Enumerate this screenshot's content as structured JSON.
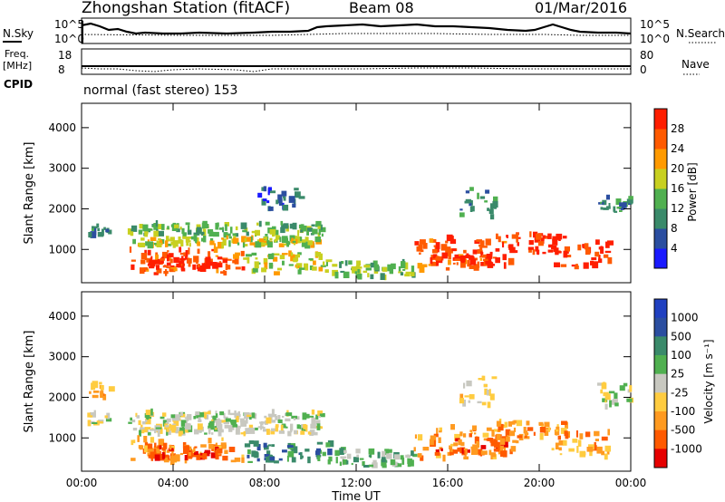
{
  "header": {
    "station": "Zhongshan Station (fitACF)",
    "beam": "Beam 08",
    "date": "01/Mar/2016",
    "cpid_label": "CPID",
    "mode": "normal (fast stereo) 153"
  },
  "strip_noise": {
    "left_label": "N.Sky",
    "right_label": "N.Search",
    "left_ticks": [
      "10^5",
      "10^0"
    ],
    "right_ticks": [
      "10^5",
      "10^0"
    ]
  },
  "strip_freq": {
    "left_label_1": "Freq.",
    "left_label_2": "[MHz]",
    "right_label": "Nave",
    "left_ticks": [
      "18",
      "8"
    ],
    "right_ticks": [
      "80",
      "0"
    ]
  },
  "colors": {
    "power": [
      "#1a1aff",
      "#2b4ea0",
      "#3a8a6a",
      "#50b050",
      "#c8d020",
      "#ff9a00",
      "#ff5a00",
      "#ff1e00"
    ],
    "velocity": [
      "#e60000",
      "#ff5a00",
      "#ff9a20",
      "#ffcc40",
      "#c8c8c0",
      "#50b050",
      "#3a8a6a",
      "#2b4ea0",
      "#2040c0"
    ]
  },
  "chart_data": [
    {
      "type": "heatmap",
      "name": "power-panel",
      "ylabel": "Slant Range [km]",
      "colorbar_label": "Power [dB]",
      "colorbar_ticks": [
        "4",
        "8",
        "12",
        "16",
        "20",
        "24",
        "28"
      ],
      "x_ticks": [
        "00:00",
        "04:00",
        "08:00",
        "12:00",
        "16:00",
        "20:00",
        "00:00"
      ],
      "y_ticks": [
        "1000",
        "2000",
        "3000",
        "4000"
      ],
      "xlim": [
        0,
        24
      ],
      "ylim": [
        180,
        4600
      ],
      "blobs": [
        {
          "t0": 0.2,
          "t1": 1.2,
          "r0": 1350,
          "r1": 1600,
          "v": 2
        },
        {
          "t0": 2.0,
          "t1": 10.5,
          "r0": 1350,
          "r1": 1650,
          "v": 3
        },
        {
          "t0": 2.2,
          "t1": 10.3,
          "r0": 1100,
          "r1": 1300,
          "v": 4
        },
        {
          "t0": 2.0,
          "t1": 7.0,
          "r0": 400,
          "r1": 1000,
          "v": 6
        },
        {
          "t0": 2.8,
          "t1": 6.2,
          "r0": 500,
          "r1": 800,
          "v": 7
        },
        {
          "t0": 7.0,
          "t1": 11.0,
          "r0": 400,
          "r1": 900,
          "v": 4
        },
        {
          "t0": 11.0,
          "t1": 14.5,
          "r0": 300,
          "r1": 700,
          "v": 3
        },
        {
          "t0": 14.5,
          "t1": 18.8,
          "r0": 500,
          "r1": 1300,
          "v": 6
        },
        {
          "t0": 15.2,
          "t1": 18.5,
          "r0": 600,
          "r1": 1000,
          "v": 7
        },
        {
          "t0": 18.0,
          "t1": 21.2,
          "r0": 900,
          "r1": 1400,
          "v": 7
        },
        {
          "t0": 20.5,
          "t1": 23.0,
          "r0": 500,
          "r1": 1200,
          "v": 7
        },
        {
          "t0": 22.5,
          "t1": 24.0,
          "r0": 1900,
          "r1": 2300,
          "v": 2
        },
        {
          "t0": 7.5,
          "t1": 9.5,
          "r0": 2000,
          "r1": 2500,
          "v": 1
        },
        {
          "t0": 16.5,
          "t1": 18.0,
          "r0": 1800,
          "r1": 2500,
          "v": 2
        }
      ]
    },
    {
      "type": "heatmap",
      "name": "velocity-panel",
      "ylabel": "Slant Range [km]",
      "xlabel": "Time UT",
      "colorbar_label": "Velocity [m s⁻¹]",
      "colorbar_ticks": [
        "1000",
        "500",
        "100",
        "25",
        "-25",
        "-100",
        "-500",
        "-1000"
      ],
      "x_ticks": [
        "00:00",
        "04:00",
        "08:00",
        "12:00",
        "16:00",
        "20:00",
        "00:00"
      ],
      "y_ticks": [
        "1000",
        "2000",
        "3000",
        "4000"
      ],
      "xlim": [
        0,
        24
      ],
      "ylim": [
        180,
        4600
      ],
      "blobs": [
        {
          "t0": 0.2,
          "t1": 1.2,
          "r0": 1350,
          "r1": 1600,
          "v": 4
        },
        {
          "t0": 2.0,
          "t1": 10.5,
          "r0": 1350,
          "r1": 1650,
          "v": 4
        },
        {
          "t0": 2.2,
          "t1": 10.3,
          "r0": 1100,
          "r1": 1300,
          "v": 4
        },
        {
          "t0": 2.0,
          "t1": 7.0,
          "r0": 400,
          "r1": 1000,
          "v": 2
        },
        {
          "t0": 2.8,
          "t1": 6.2,
          "r0": 500,
          "r1": 800,
          "v": 1
        },
        {
          "t0": 7.0,
          "t1": 11.0,
          "r0": 400,
          "r1": 900,
          "v": 6
        },
        {
          "t0": 11.0,
          "t1": 14.5,
          "r0": 300,
          "r1": 700,
          "v": 5
        },
        {
          "t0": 14.5,
          "t1": 18.8,
          "r0": 500,
          "r1": 1300,
          "v": 2
        },
        {
          "t0": 15.2,
          "t1": 18.5,
          "r0": 600,
          "r1": 1000,
          "v": 1
        },
        {
          "t0": 18.0,
          "t1": 21.2,
          "r0": 900,
          "r1": 1400,
          "v": 2
        },
        {
          "t0": 20.5,
          "t1": 23.0,
          "r0": 500,
          "r1": 1200,
          "v": 2
        },
        {
          "t0": 22.5,
          "t1": 24.0,
          "r0": 1700,
          "r1": 2400,
          "v": 4
        },
        {
          "t0": 0.3,
          "t1": 1.2,
          "r0": 2000,
          "r1": 2400,
          "v": 2
        },
        {
          "t0": 16.5,
          "t1": 18.0,
          "r0": 1800,
          "r1": 2500,
          "v": 3
        }
      ]
    }
  ]
}
